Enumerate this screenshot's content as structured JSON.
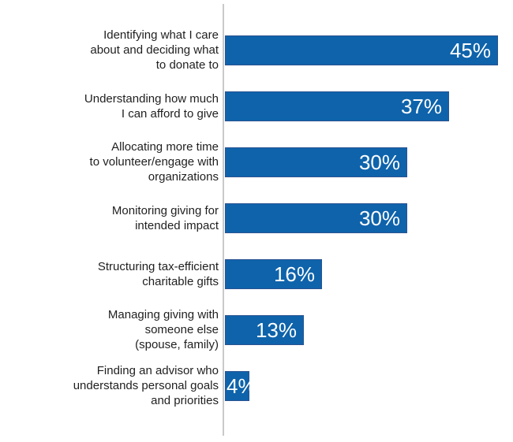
{
  "chart_data": {
    "type": "bar",
    "orientation": "horizontal",
    "title": "",
    "xlabel": "",
    "ylabel": "",
    "grid": false,
    "legend": false,
    "value_labels_inside_bars": true,
    "xlim": [
      0,
      47.7
    ],
    "categories": [
      "Identifying what I care about and deciding what to donate to",
      "Understanding how much I can afford to give",
      "Allocating more time to volunteer/engage with organizations",
      "Monitoring giving for intended impact",
      "Structuring tax-efficient charitable gifts",
      "Managing giving with someone else (spouse, family)",
      "Finding an advisor who understands personal goals and priorities"
    ],
    "category_lines": [
      [
        "Identifying what I care",
        "about and deciding what",
        "to donate to"
      ],
      [
        "Understanding how much",
        "I can afford to give"
      ],
      [
        "Allocating more time",
        "to volunteer/engage with",
        "organizations"
      ],
      [
        "Monitoring giving for",
        "intended impact"
      ],
      [
        "Structuring tax-efficient",
        "charitable gifts"
      ],
      [
        "Managing giving with",
        "someone else",
        "(spouse, family)"
      ],
      [
        "Finding an advisor who",
        "understands personal goals",
        "and priorities"
      ]
    ],
    "values": [
      45,
      37,
      30,
      30,
      16,
      13,
      4
    ],
    "value_labels": [
      "45%",
      "37%",
      "30%",
      "30%",
      "16%",
      "13%",
      "4%"
    ]
  },
  "style": {
    "bar_fill": "#0e63ab",
    "bar_border": "#2b5491",
    "axis_line": "#c9c9c9",
    "label_text": "#1f1f1f",
    "value_text": "#ffffff",
    "background": "#ffffff"
  }
}
